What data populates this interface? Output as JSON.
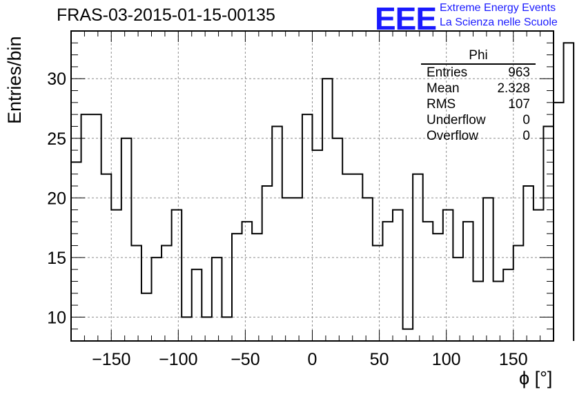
{
  "title": "FRAS-03-2015-01-15-00135",
  "logo": {
    "mark": "EEE",
    "line1": "Extreme Energy Events",
    "line2": "La Scienza nelle Scuole"
  },
  "stats": {
    "name": "Phi",
    "rows": [
      {
        "label": "Entries",
        "value": "963"
      },
      {
        "label": "Mean",
        "value": "2.328"
      },
      {
        "label": "RMS",
        "value": "107"
      },
      {
        "label": "Underflow",
        "value": "0"
      },
      {
        "label": "Overflow",
        "value": "0"
      }
    ]
  },
  "colors": {
    "line": "#000000",
    "grid": "#8c8c8c",
    "logo": "#1a1aff"
  },
  "chart_data": {
    "type": "bar",
    "style": "step-histogram",
    "xlabel": "ϕ [°]",
    "ylabel": "Entries/bin",
    "xlim": [
      -180,
      180
    ],
    "ylim": [
      8,
      34
    ],
    "grid": true,
    "x_ticks": [
      -150,
      -100,
      -50,
      0,
      50,
      100,
      150
    ],
    "y_ticks": [
      10,
      15,
      20,
      25,
      30
    ],
    "bin_width": 7.5,
    "bin_edges_start": -180,
    "values": [
      23,
      27,
      27,
      22,
      19,
      25,
      16,
      12,
      15,
      16,
      19,
      10,
      14,
      10,
      15,
      10,
      17,
      18,
      17,
      21,
      26,
      20,
      20,
      27,
      24,
      30,
      25,
      22,
      22,
      20,
      16,
      18,
      19,
      9,
      22,
      18,
      17,
      19,
      15,
      18,
      13,
      20,
      13,
      14,
      16,
      21,
      19,
      26,
      28,
      33
    ]
  }
}
